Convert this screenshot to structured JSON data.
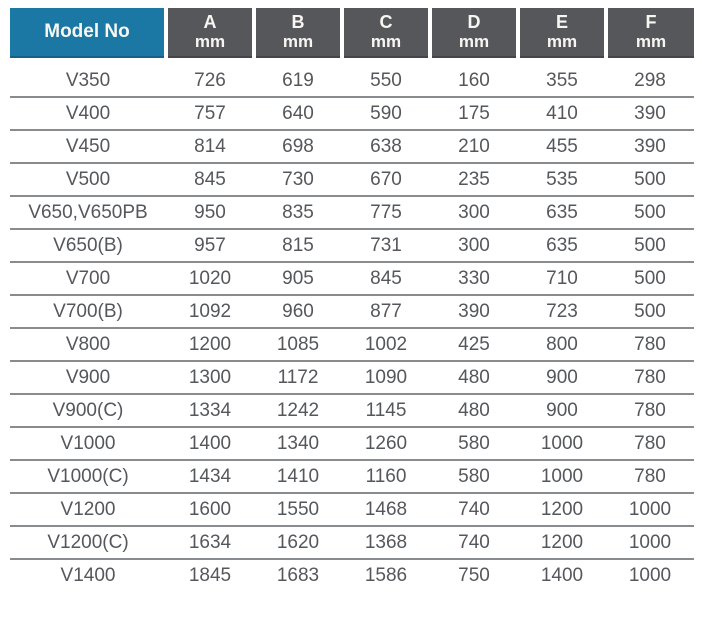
{
  "colors": {
    "header-blue": "#1b77a4",
    "header-blue-dark": "#14628b",
    "header-gray": "#56575b",
    "header-gray-dark": "#454649",
    "header-text": "#f8f6f2",
    "body-text": "#55575b",
    "row-line": "#898c8f"
  },
  "table": {
    "model_header": "Model No",
    "dim_columns": [
      {
        "letter": "A",
        "unit": "mm"
      },
      {
        "letter": "B",
        "unit": "mm"
      },
      {
        "letter": "C",
        "unit": "mm"
      },
      {
        "letter": "D",
        "unit": "mm"
      },
      {
        "letter": "E",
        "unit": "mm"
      },
      {
        "letter": "F",
        "unit": "mm"
      }
    ],
    "rows": [
      {
        "model": "V350",
        "values": [
          "726",
          "619",
          "550",
          "160",
          "355",
          "298"
        ]
      },
      {
        "model": "V400",
        "values": [
          "757",
          "640",
          "590",
          "175",
          "410",
          "390"
        ]
      },
      {
        "model": "V450",
        "values": [
          "814",
          "698",
          "638",
          "210",
          "455",
          "390"
        ]
      },
      {
        "model": "V500",
        "values": [
          "845",
          "730",
          "670",
          "235",
          "535",
          "500"
        ]
      },
      {
        "model": "V650,V650PB",
        "values": [
          "950",
          "835",
          "775",
          "300",
          "635",
          "500"
        ]
      },
      {
        "model": "V650(B)",
        "values": [
          "957",
          "815",
          "731",
          "300",
          "635",
          "500"
        ]
      },
      {
        "model": "V700",
        "values": [
          "1020",
          "905",
          "845",
          "330",
          "710",
          "500"
        ]
      },
      {
        "model": "V700(B)",
        "values": [
          "1092",
          "960",
          "877",
          "390",
          "723",
          "500"
        ]
      },
      {
        "model": "V800",
        "values": [
          "1200",
          "1085",
          "1002",
          "425",
          "800",
          "780"
        ]
      },
      {
        "model": "V900",
        "values": [
          "1300",
          "1172",
          "1090",
          "480",
          "900",
          "780"
        ]
      },
      {
        "model": "V900(C)",
        "values": [
          "1334",
          "1242",
          "1145",
          "480",
          "900",
          "780"
        ]
      },
      {
        "model": "V1000",
        "values": [
          "1400",
          "1340",
          "1260",
          "580",
          "1000",
          "780"
        ]
      },
      {
        "model": "V1000(C)",
        "values": [
          "1434",
          "1410",
          "1160",
          "580",
          "1000",
          "780"
        ]
      },
      {
        "model": "V1200",
        "values": [
          "1600",
          "1550",
          "1468",
          "740",
          "1200",
          "1000"
        ]
      },
      {
        "model": "V1200(C)",
        "values": [
          "1634",
          "1620",
          "1368",
          "740",
          "1200",
          "1000"
        ]
      },
      {
        "model": "V1400",
        "values": [
          "1845",
          "1683",
          "1586",
          "750",
          "1400",
          "1000"
        ]
      }
    ]
  }
}
